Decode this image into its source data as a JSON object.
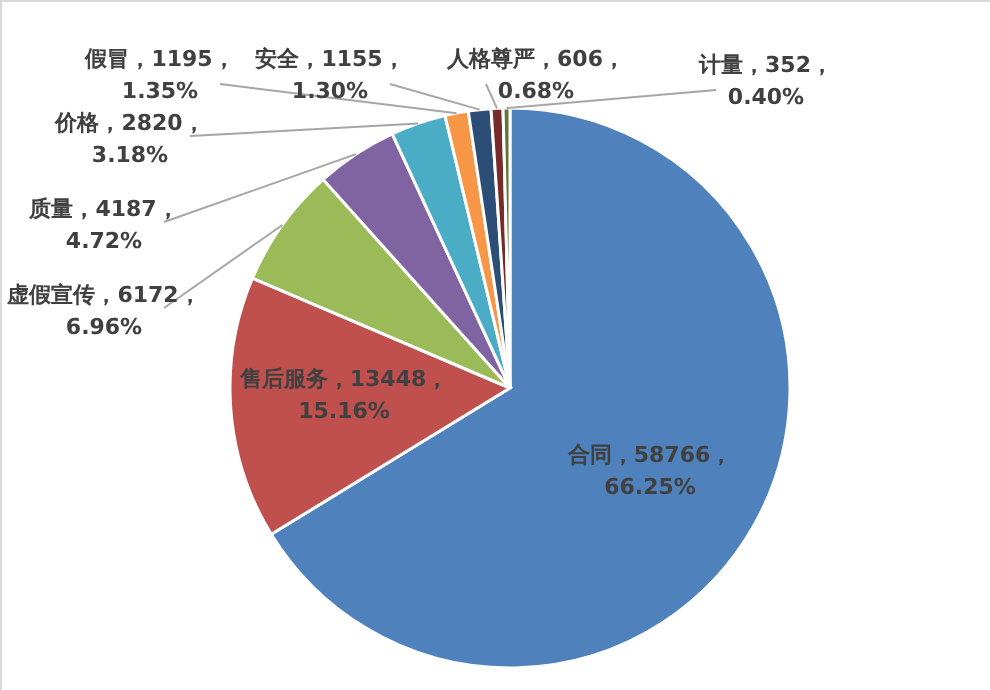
{
  "chart_data": {
    "type": "pie",
    "categories": [
      "合同",
      "售后服务",
      "虚假宣传",
      "质量",
      "价格",
      "假冒",
      "安全",
      "人格尊严",
      "计量"
    ],
    "values": [
      58766,
      13448,
      6172,
      4187,
      2820,
      1195,
      1155,
      606,
      352
    ],
    "colors": [
      "#4f81bd",
      "#c0504d",
      "#9bbb59",
      "#8064a2",
      "#4bacc6",
      "#f79646",
      "#2c4d75",
      "#772c2a",
      "#5f7530"
    ],
    "value_labels": [
      "58766，66.25%",
      "13448，15.16%",
      "6172，6.96%",
      "4187，4.72%",
      "2820，3.18%",
      "1195，1.35%",
      "1155，1.30%",
      "606，0.68%",
      "352，0.40%"
    ]
  }
}
